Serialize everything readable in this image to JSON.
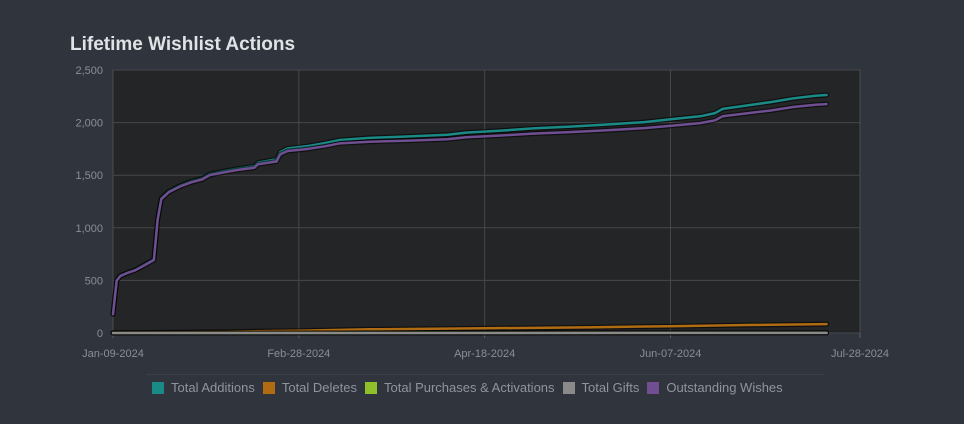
{
  "title": "Lifetime Wishlist Actions",
  "chart_data": {
    "type": "line",
    "title": "Lifetime Wishlist Actions",
    "x_ticks": [
      "Jan-09-2024",
      "Feb-28-2024",
      "Apr-18-2024",
      "Jun-07-2024",
      "Jul-28-2024"
    ],
    "y_ticks": [
      "0",
      "500",
      "1,000",
      "1,500",
      "2,000",
      "2,500"
    ],
    "xlim": [
      "2024-01-09",
      "2024-07-28"
    ],
    "ylim": [
      0,
      2500
    ],
    "grid": true,
    "legend_position": "bottom",
    "series": [
      {
        "name": "Total Additions",
        "color": "#1a8a86",
        "points": [
          [
            "2024-01-09",
            180
          ],
          [
            "2024-01-10",
            500
          ],
          [
            "2024-01-11",
            545
          ],
          [
            "2024-01-13",
            575
          ],
          [
            "2024-01-15",
            600
          ],
          [
            "2024-01-17",
            640
          ],
          [
            "2024-01-19",
            680
          ],
          [
            "2024-01-20",
            700
          ],
          [
            "2024-01-21",
            1080
          ],
          [
            "2024-01-22",
            1280
          ],
          [
            "2024-01-24",
            1345
          ],
          [
            "2024-01-27",
            1400
          ],
          [
            "2024-01-30",
            1440
          ],
          [
            "2024-02-02",
            1470
          ],
          [
            "2024-02-04",
            1510
          ],
          [
            "2024-02-08",
            1540
          ],
          [
            "2024-02-12",
            1565
          ],
          [
            "2024-02-16",
            1585
          ],
          [
            "2024-02-17",
            1620
          ],
          [
            "2024-02-22",
            1650
          ],
          [
            "2024-02-23",
            1720
          ],
          [
            "2024-02-25",
            1755
          ],
          [
            "2024-03-01",
            1775
          ],
          [
            "2024-03-06",
            1805
          ],
          [
            "2024-03-10",
            1835
          ],
          [
            "2024-03-18",
            1855
          ],
          [
            "2024-03-28",
            1868
          ],
          [
            "2024-04-08",
            1885
          ],
          [
            "2024-04-13",
            1905
          ],
          [
            "2024-04-23",
            1925
          ],
          [
            "2024-05-01",
            1945
          ],
          [
            "2024-05-11",
            1962
          ],
          [
            "2024-05-21",
            1982
          ],
          [
            "2024-05-31",
            2005
          ],
          [
            "2024-06-08",
            2035
          ],
          [
            "2024-06-15",
            2060
          ],
          [
            "2024-06-19",
            2090
          ],
          [
            "2024-06-21",
            2130
          ],
          [
            "2024-06-28",
            2165
          ],
          [
            "2024-07-04",
            2195
          ],
          [
            "2024-07-10",
            2230
          ],
          [
            "2024-07-16",
            2255
          ],
          [
            "2024-07-19",
            2262
          ]
        ]
      },
      {
        "name": "Total Deletes",
        "color": "#b06c12",
        "points": [
          [
            "2024-01-09",
            2
          ],
          [
            "2024-01-21",
            6
          ],
          [
            "2024-02-08",
            12
          ],
          [
            "2024-02-28",
            22
          ],
          [
            "2024-03-18",
            35
          ],
          [
            "2024-04-18",
            45
          ],
          [
            "2024-05-18",
            55
          ],
          [
            "2024-06-07",
            65
          ],
          [
            "2024-06-28",
            76
          ],
          [
            "2024-07-19",
            85
          ]
        ]
      },
      {
        "name": "Total Purchases & Activations",
        "color": "#8fc02b",
        "points": [
          [
            "2024-01-09",
            0
          ],
          [
            "2024-07-19",
            2
          ]
        ]
      },
      {
        "name": "Total Gifts",
        "color": "#8a8a8a",
        "points": [
          [
            "2024-01-09",
            0
          ],
          [
            "2024-07-19",
            1
          ]
        ]
      },
      {
        "name": "Outstanding Wishes",
        "color": "#6f4f91",
        "points": [
          [
            "2024-01-09",
            178
          ],
          [
            "2024-01-10",
            498
          ],
          [
            "2024-01-11",
            542
          ],
          [
            "2024-01-13",
            572
          ],
          [
            "2024-01-15",
            596
          ],
          [
            "2024-01-17",
            634
          ],
          [
            "2024-01-19",
            674
          ],
          [
            "2024-01-20",
            694
          ],
          [
            "2024-01-21",
            1072
          ],
          [
            "2024-01-22",
            1272
          ],
          [
            "2024-01-24",
            1337
          ],
          [
            "2024-01-27",
            1392
          ],
          [
            "2024-01-30",
            1432
          ],
          [
            "2024-02-02",
            1460
          ],
          [
            "2024-02-04",
            1500
          ],
          [
            "2024-02-08",
            1528
          ],
          [
            "2024-02-12",
            1552
          ],
          [
            "2024-02-16",
            1570
          ],
          [
            "2024-02-17",
            1604
          ],
          [
            "2024-02-22",
            1630
          ],
          [
            "2024-02-23",
            1698
          ],
          [
            "2024-02-25",
            1730
          ],
          [
            "2024-03-01",
            1748
          ],
          [
            "2024-03-06",
            1775
          ],
          [
            "2024-03-10",
            1802
          ],
          [
            "2024-03-18",
            1818
          ],
          [
            "2024-03-28",
            1828
          ],
          [
            "2024-04-08",
            1842
          ],
          [
            "2024-04-13",
            1860
          ],
          [
            "2024-04-23",
            1878
          ],
          [
            "2024-05-01",
            1895
          ],
          [
            "2024-05-11",
            1910
          ],
          [
            "2024-05-21",
            1928
          ],
          [
            "2024-05-31",
            1948
          ],
          [
            "2024-06-08",
            1972
          ],
          [
            "2024-06-15",
            1995
          ],
          [
            "2024-06-19",
            2022
          ],
          [
            "2024-06-21",
            2060
          ],
          [
            "2024-06-28",
            2090
          ],
          [
            "2024-07-04",
            2115
          ],
          [
            "2024-07-10",
            2148
          ],
          [
            "2024-07-16",
            2170
          ],
          [
            "2024-07-19",
            2176
          ]
        ]
      }
    ]
  }
}
